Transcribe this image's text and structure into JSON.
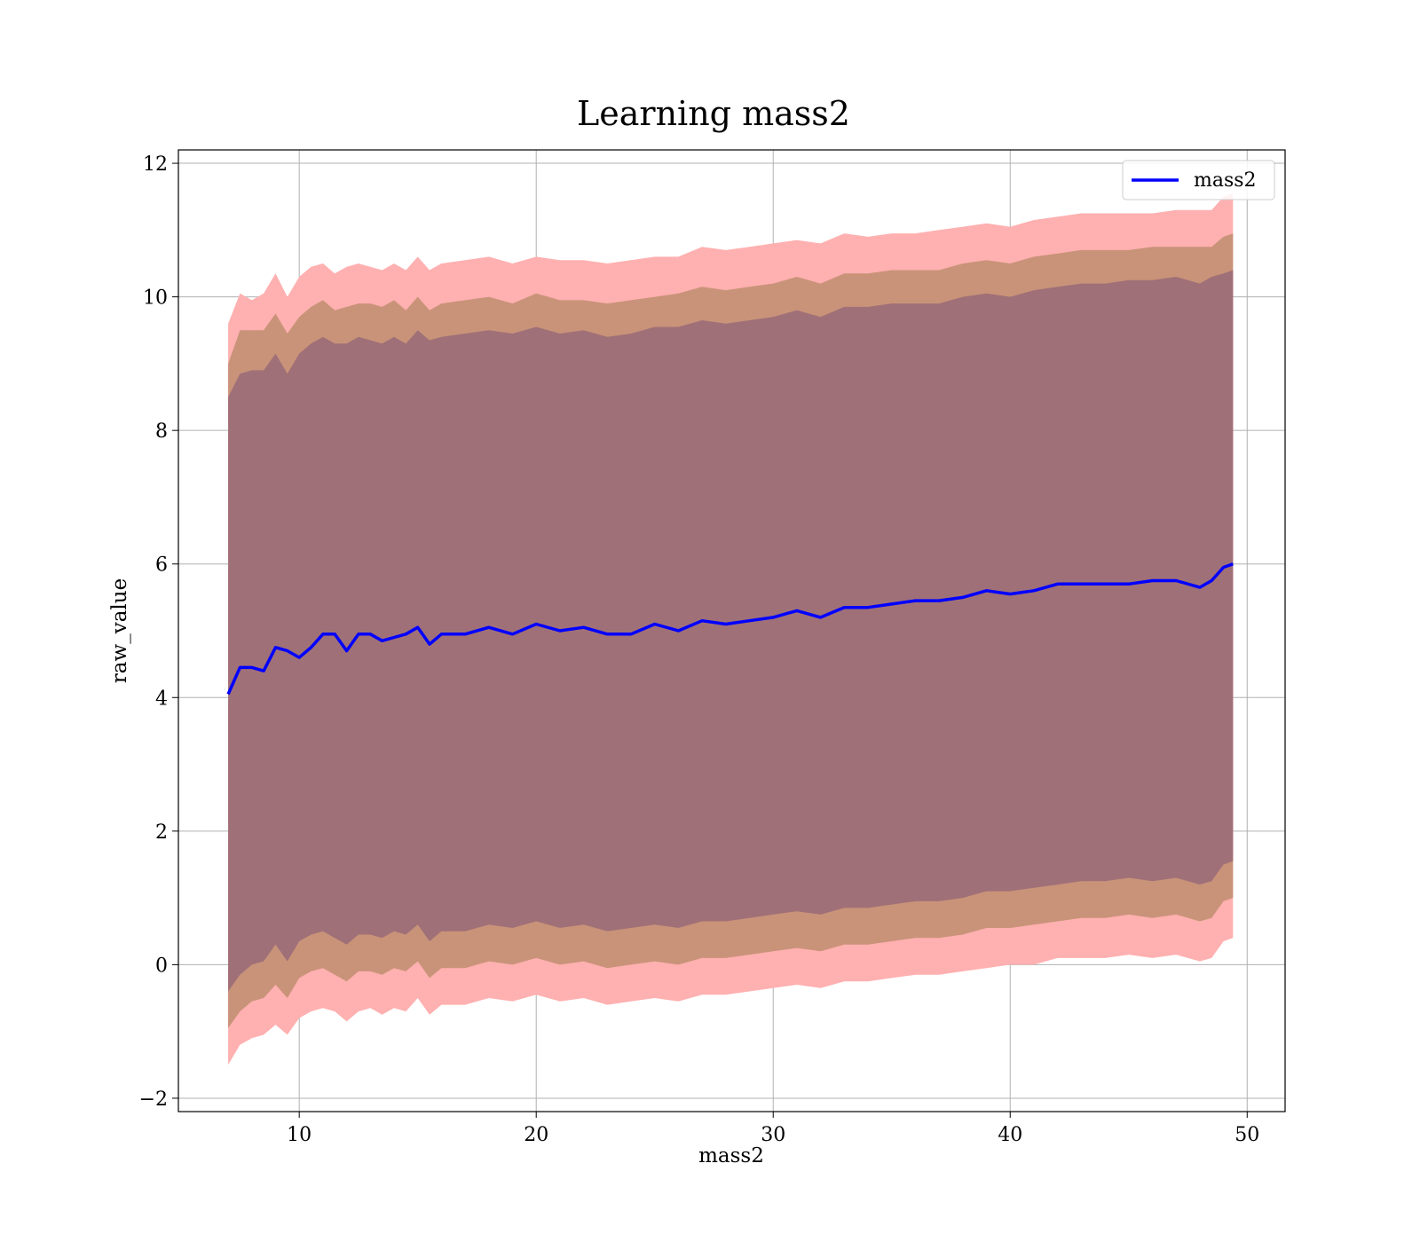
{
  "chart_data": {
    "type": "area",
    "title": "Learning mass2",
    "xlabel": "mass2",
    "ylabel": "raw_value",
    "xlim": [
      4.9,
      51.6
    ],
    "ylim": [
      -2.2,
      12.2
    ],
    "xticks": [
      10,
      20,
      30,
      40,
      50
    ],
    "yticks": [
      -2,
      0,
      2,
      4,
      6,
      8,
      10,
      12
    ],
    "grid": true,
    "legend": {
      "position": "upper right",
      "entries": [
        "mass2"
      ]
    },
    "colors": {
      "line": "#0000ff",
      "band_outer": "#ffb0b0",
      "band_middle": "#c99379",
      "band_inner": "#a07078",
      "grid": "#b0b0b0"
    },
    "x": [
      7.0,
      7.5,
      8.0,
      8.5,
      9.0,
      9.5,
      10.0,
      10.5,
      11.0,
      11.5,
      12.0,
      12.5,
      13.0,
      13.5,
      14.0,
      14.5,
      15.0,
      15.5,
      16.0,
      17.0,
      18.0,
      19.0,
      20.0,
      21.0,
      22.0,
      23.0,
      24.0,
      25.0,
      26.0,
      27.0,
      28.0,
      29.0,
      30.0,
      31.0,
      32.0,
      33.0,
      34.0,
      35.0,
      36.0,
      37.0,
      38.0,
      39.0,
      40.0,
      41.0,
      42.0,
      43.0,
      44.0,
      45.0,
      46.0,
      47.0,
      48.0,
      48.5,
      49.0,
      49.4
    ],
    "series": [
      {
        "name": "mass2",
        "values": [
          4.05,
          4.45,
          4.45,
          4.4,
          4.75,
          4.7,
          4.6,
          4.75,
          4.95,
          4.95,
          4.7,
          4.95,
          4.95,
          4.85,
          4.9,
          4.95,
          5.05,
          4.8,
          4.95,
          4.95,
          5.05,
          4.95,
          5.1,
          5.0,
          5.05,
          4.95,
          4.95,
          5.1,
          5.0,
          5.15,
          5.1,
          5.15,
          5.2,
          5.3,
          5.2,
          5.35,
          5.35,
          5.4,
          5.45,
          5.45,
          5.5,
          5.6,
          5.55,
          5.6,
          5.7,
          5.7,
          5.7,
          5.7,
          5.75,
          5.75,
          5.65,
          5.75,
          5.95,
          6.0
        ]
      }
    ],
    "bands": [
      {
        "upper": [
          9.6,
          10.05,
          9.95,
          10.05,
          10.35,
          10.0,
          10.3,
          10.45,
          10.5,
          10.35,
          10.45,
          10.5,
          10.45,
          10.4,
          10.5,
          10.4,
          10.6,
          10.4,
          10.5,
          10.55,
          10.6,
          10.5,
          10.6,
          10.55,
          10.55,
          10.5,
          10.55,
          10.6,
          10.6,
          10.75,
          10.7,
          10.75,
          10.8,
          10.85,
          10.8,
          10.95,
          10.9,
          10.95,
          10.95,
          11.0,
          11.05,
          11.1,
          11.05,
          11.15,
          11.2,
          11.25,
          11.25,
          11.25,
          11.25,
          11.3,
          11.3,
          11.3,
          11.5,
          11.55
        ]
      },
      {
        "upper": [
          9.0,
          9.5,
          9.5,
          9.5,
          9.75,
          9.45,
          9.7,
          9.85,
          9.95,
          9.8,
          9.85,
          9.9,
          9.9,
          9.85,
          9.95,
          9.8,
          10.0,
          9.8,
          9.9,
          9.95,
          10.0,
          9.9,
          10.05,
          9.95,
          9.95,
          9.9,
          9.95,
          10.0,
          10.05,
          10.15,
          10.1,
          10.15,
          10.2,
          10.3,
          10.2,
          10.35,
          10.35,
          10.4,
          10.4,
          10.4,
          10.5,
          10.55,
          10.5,
          10.6,
          10.65,
          10.7,
          10.7,
          10.7,
          10.75,
          10.75,
          10.75,
          10.75,
          10.9,
          10.95
        ]
      },
      {
        "upper": [
          8.5,
          8.85,
          8.9,
          8.9,
          9.15,
          8.85,
          9.15,
          9.3,
          9.4,
          9.3,
          9.3,
          9.4,
          9.35,
          9.3,
          9.4,
          9.3,
          9.5,
          9.35,
          9.4,
          9.45,
          9.5,
          9.45,
          9.55,
          9.45,
          9.5,
          9.4,
          9.45,
          9.55,
          9.55,
          9.65,
          9.6,
          9.65,
          9.7,
          9.8,
          9.7,
          9.85,
          9.85,
          9.9,
          9.9,
          9.9,
          10.0,
          10.05,
          10.0,
          10.1,
          10.15,
          10.2,
          10.2,
          10.25,
          10.25,
          10.3,
          10.2,
          10.3,
          10.35,
          10.4
        ]
      }
    ],
    "bands_lower": [
      [
        -1.5,
        -1.2,
        -1.1,
        -1.05,
        -0.9,
        -1.05,
        -0.8,
        -0.7,
        -0.65,
        -0.7,
        -0.85,
        -0.7,
        -0.65,
        -0.75,
        -0.65,
        -0.7,
        -0.5,
        -0.75,
        -0.6,
        -0.6,
        -0.5,
        -0.55,
        -0.45,
        -0.55,
        -0.5,
        -0.6,
        -0.55,
        -0.5,
        -0.55,
        -0.45,
        -0.45,
        -0.4,
        -0.35,
        -0.3,
        -0.35,
        -0.25,
        -0.25,
        -0.2,
        -0.15,
        -0.15,
        -0.1,
        -0.05,
        0.0,
        0.0,
        0.1,
        0.1,
        0.1,
        0.15,
        0.1,
        0.15,
        0.05,
        0.1,
        0.35,
        0.4
      ],
      [
        -0.95,
        -0.7,
        -0.55,
        -0.5,
        -0.3,
        -0.5,
        -0.2,
        -0.1,
        -0.05,
        -0.15,
        -0.25,
        -0.1,
        -0.1,
        -0.15,
        -0.05,
        -0.1,
        0.05,
        -0.2,
        -0.05,
        -0.05,
        0.05,
        0.0,
        0.1,
        0.0,
        0.05,
        -0.05,
        0.0,
        0.05,
        0.0,
        0.1,
        0.1,
        0.15,
        0.2,
        0.25,
        0.2,
        0.3,
        0.3,
        0.35,
        0.4,
        0.4,
        0.45,
        0.55,
        0.55,
        0.6,
        0.65,
        0.7,
        0.7,
        0.75,
        0.7,
        0.75,
        0.65,
        0.7,
        0.95,
        1.0
      ],
      [
        -0.4,
        -0.15,
        0.0,
        0.05,
        0.3,
        0.05,
        0.35,
        0.45,
        0.5,
        0.4,
        0.3,
        0.45,
        0.45,
        0.4,
        0.5,
        0.45,
        0.6,
        0.35,
        0.5,
        0.5,
        0.6,
        0.55,
        0.65,
        0.55,
        0.6,
        0.5,
        0.55,
        0.6,
        0.55,
        0.65,
        0.65,
        0.7,
        0.75,
        0.8,
        0.75,
        0.85,
        0.85,
        0.9,
        0.95,
        0.95,
        1.0,
        1.1,
        1.1,
        1.15,
        1.2,
        1.25,
        1.25,
        1.3,
        1.25,
        1.3,
        1.2,
        1.25,
        1.5,
        1.55
      ]
    ]
  }
}
